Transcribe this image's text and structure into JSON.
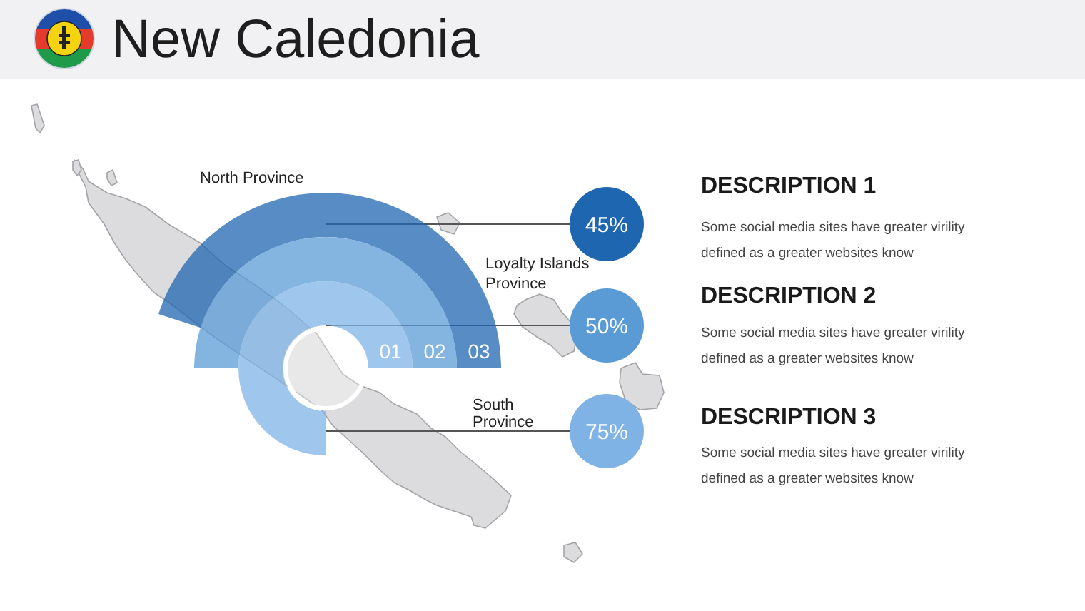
{
  "chart_data": {
    "type": "other",
    "title": "New Caledonia",
    "categories": [
      "DESCRIPTION 1",
      "DESCRIPTION 2",
      "DESCRIPTION 3"
    ],
    "values": [
      45,
      50,
      75
    ],
    "value_labels": [
      "45%",
      "50%",
      "75%"
    ],
    "colors": [
      "#1f66b0",
      "#5b9bd5",
      "#7fb3e6"
    ],
    "annotations": [
      "North Province",
      "Loyalty Islands Province",
      "South Province",
      "01",
      "02",
      "03",
      "Some social media sites have greater virility defined as a greater websites know",
      "Some social media sites have greater virility defined as a greater websites know",
      "Some social media sites have greater virility defined as a greater websites know"
    ]
  }
}
